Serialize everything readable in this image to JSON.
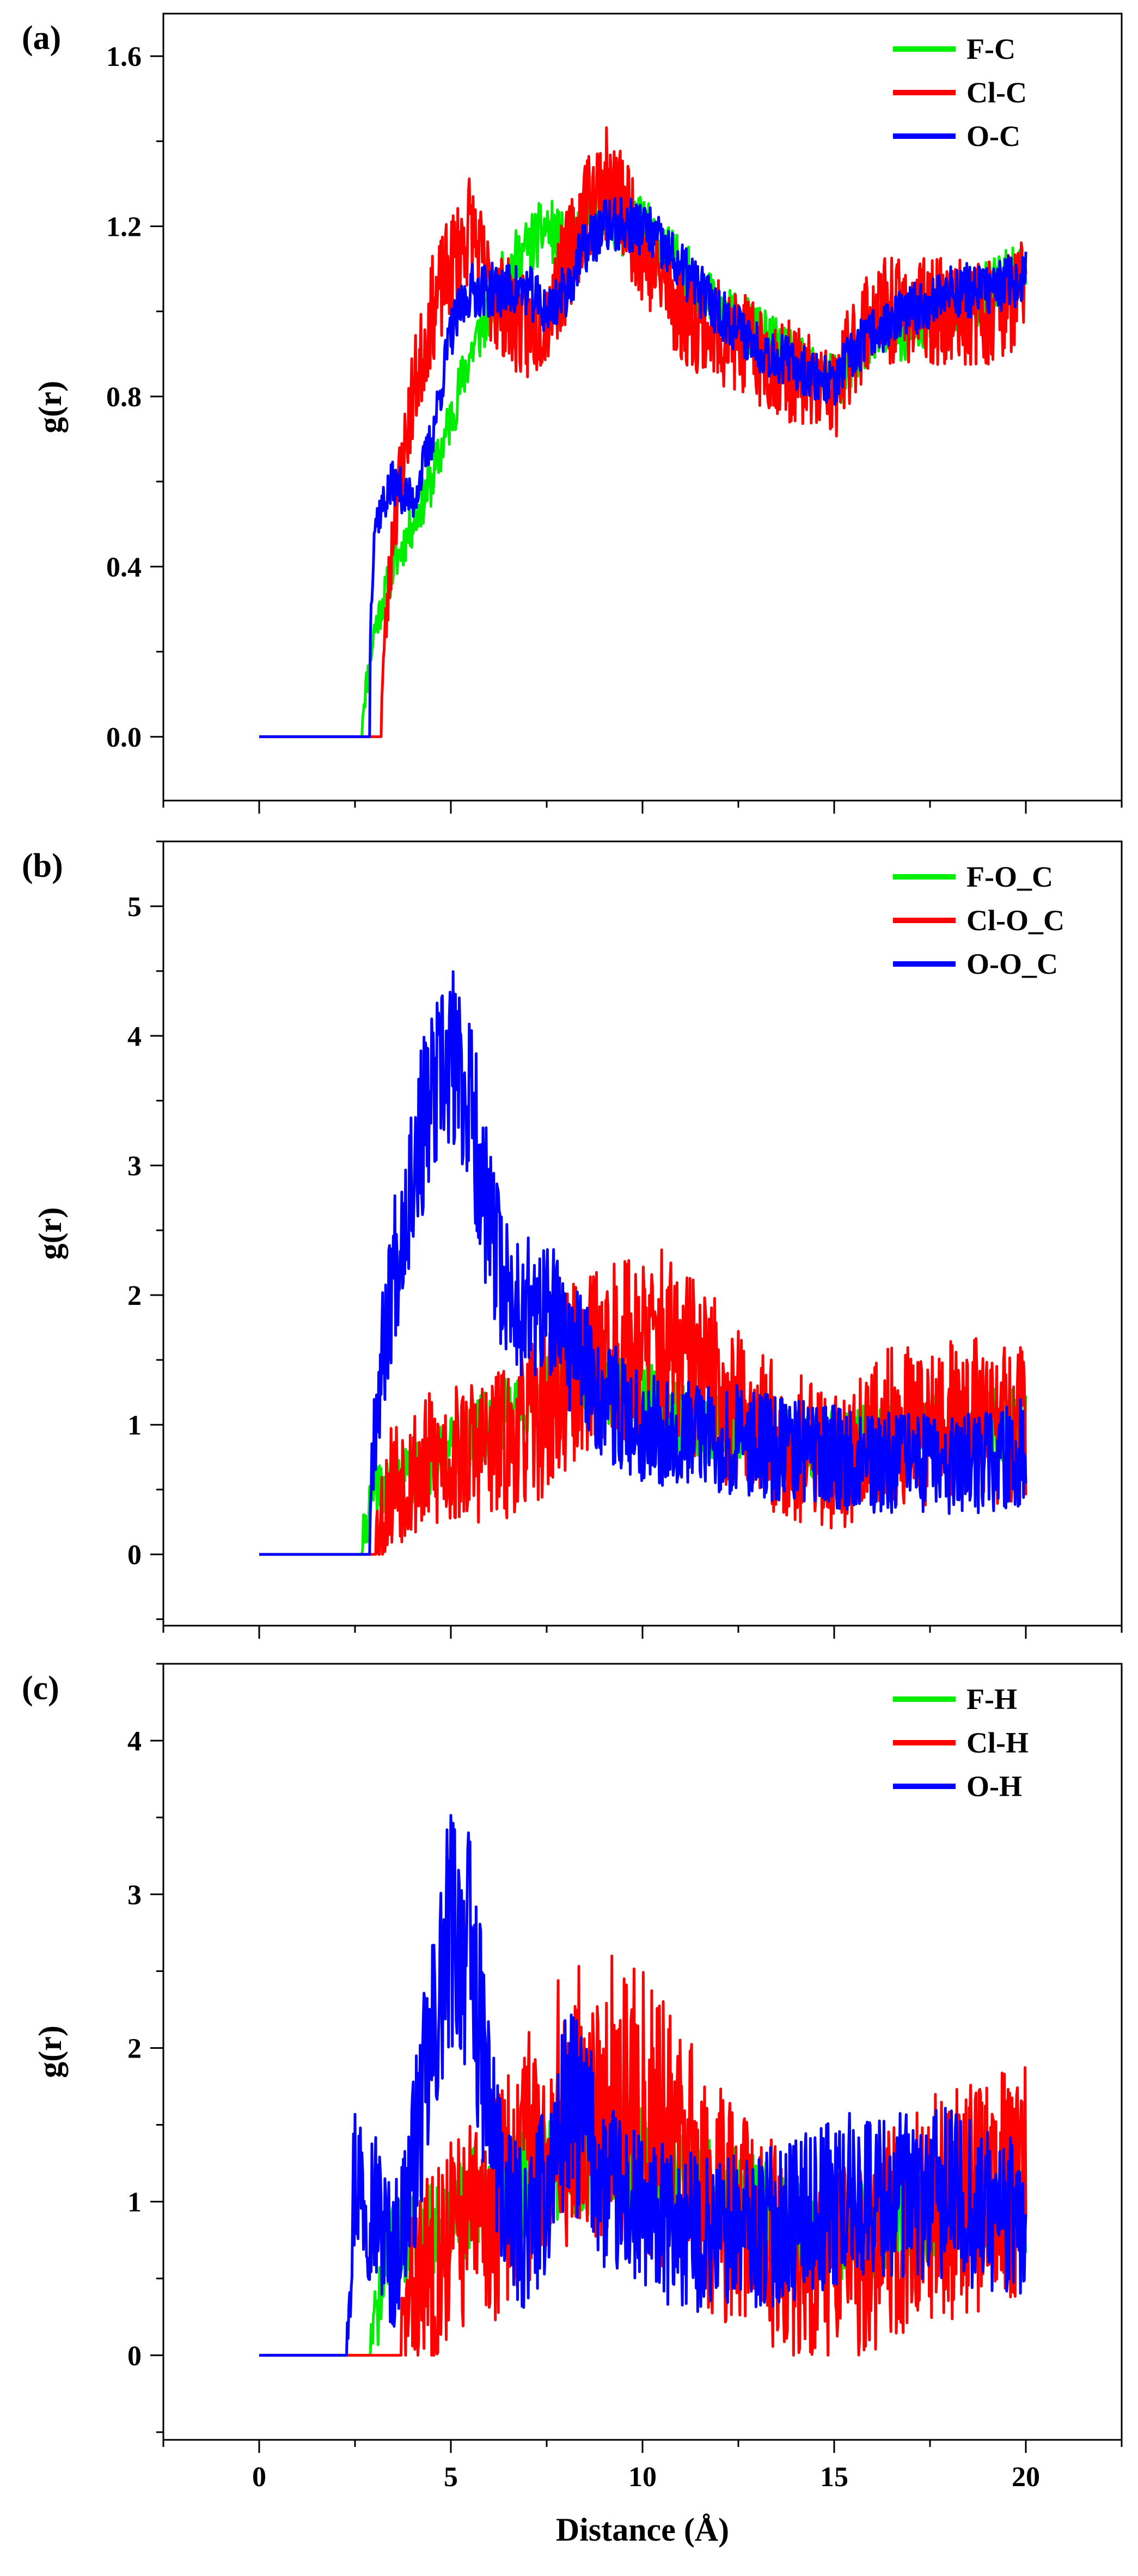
{
  "chart_data": [
    {
      "panel": "(a)",
      "type": "line",
      "xlabel": "",
      "ylabel": "g(r)",
      "xlim": [
        -2.5,
        22.5
      ],
      "ylim": [
        -0.15,
        1.7
      ],
      "xticks": [
        0,
        5,
        10,
        15,
        20
      ],
      "xticklabels": [],
      "yticks": [
        0.0,
        0.4,
        0.8,
        1.2,
        1.6
      ],
      "yticklabels": [
        "0.0",
        "0.4",
        "0.8",
        "1.2",
        "1.6"
      ],
      "legend_position": "top-right",
      "series": [
        {
          "name": "F-C",
          "color": "#00ee00",
          "onset": 2.7,
          "noise": 0.05,
          "seed": 11,
          "x": [
            0,
            2.6,
            3.0,
            3.5,
            4.0,
            4.5,
            5.0,
            5.5,
            6.0,
            6.5,
            7.0,
            7.5,
            8.0,
            8.5,
            9.0,
            9.5,
            10.0,
            11.0,
            12.0,
            13.0,
            14.0,
            14.5,
            15.0,
            15.5,
            16.0,
            17.0,
            18.0,
            19.0,
            20.0
          ],
          "y": [
            0,
            0,
            0.25,
            0.4,
            0.5,
            0.6,
            0.75,
            0.9,
            1.0,
            1.1,
            1.15,
            1.2,
            1.15,
            1.2,
            1.25,
            1.2,
            1.2,
            1.1,
            1.0,
            0.95,
            0.88,
            0.85,
            0.83,
            0.88,
            0.95,
            0.95,
            1.0,
            1.05,
            1.1
          ]
        },
        {
          "name": "Cl-C",
          "color": "#ff0000",
          "onset": 3.2,
          "noise": 0.09,
          "seed": 23,
          "x": [
            0,
            3.1,
            3.5,
            4.0,
            4.5,
            5.0,
            5.5,
            6.0,
            6.5,
            7.0,
            7.5,
            8.0,
            8.5,
            9.0,
            9.5,
            10.0,
            11.0,
            12.0,
            13.0,
            14.0,
            15.0,
            15.5,
            16.0,
            17.0,
            18.0,
            19.0,
            20.0
          ],
          "y": [
            0,
            0,
            0.5,
            0.8,
            1.0,
            1.1,
            1.2,
            1.05,
            1.0,
            0.95,
            1.0,
            1.1,
            1.25,
            1.3,
            1.25,
            1.15,
            1.0,
            0.95,
            0.9,
            0.85,
            0.8,
            0.92,
            1.0,
            1.0,
            1.0,
            1.0,
            1.05
          ]
        },
        {
          "name": "O-C",
          "color": "#0000ff",
          "onset": 2.9,
          "noise": 0.045,
          "seed": 37,
          "x": [
            0,
            2.8,
            3.0,
            3.5,
            4.0,
            4.5,
            5.0,
            5.5,
            6.0,
            6.5,
            7.0,
            7.5,
            8.0,
            8.5,
            9.0,
            9.5,
            10.0,
            11.0,
            12.0,
            13.0,
            14.0,
            14.5,
            15.0,
            15.5,
            16.0,
            17.0,
            18.0,
            19.0,
            20.0
          ],
          "y": [
            0,
            0,
            0.5,
            0.6,
            0.55,
            0.7,
            0.95,
            1.05,
            1.05,
            1.05,
            1.05,
            1.0,
            1.05,
            1.15,
            1.2,
            1.2,
            1.2,
            1.1,
            1.0,
            0.92,
            0.87,
            0.85,
            0.83,
            0.9,
            0.95,
            1.0,
            1.05,
            1.05,
            1.08
          ]
        }
      ]
    },
    {
      "panel": "(b)",
      "type": "line",
      "xlabel": "",
      "ylabel": "g(r)",
      "xlim": [
        -2.5,
        22.5
      ],
      "ylim": [
        -0.55,
        5.5
      ],
      "xticks": [
        0,
        5,
        10,
        15,
        20
      ],
      "xticklabels": [],
      "yticks": [
        0,
        1,
        2,
        3,
        4,
        5
      ],
      "yticklabels": [
        "0",
        "1",
        "2",
        "3",
        "4",
        "5"
      ],
      "legend_position": "top-right",
      "series": [
        {
          "name": "F-O_C",
          "color": "#00ee00",
          "onset": 2.7,
          "noise": 0.2,
          "seed": 41,
          "x": [
            0,
            2.6,
            3.0,
            4.0,
            5.0,
            6.0,
            7.0,
            8.0,
            9.0,
            10.0,
            11.0,
            12.0,
            13.0,
            14.0,
            15.0,
            16.0,
            17.0,
            18.0,
            19.0,
            20.0
          ],
          "y": [
            0,
            0,
            0.5,
            0.6,
            0.8,
            1.0,
            1.2,
            1.4,
            1.3,
            1.2,
            1.05,
            0.95,
            0.9,
            0.85,
            0.85,
            0.9,
            0.95,
            1.0,
            1.0,
            1.0
          ]
        },
        {
          "name": "Cl-O_C",
          "color": "#ff0000",
          "onset": 3.0,
          "noise": 0.45,
          "seed": 53,
          "x": [
            0,
            2.9,
            3.5,
            4.5,
            5.5,
            6.5,
            7.5,
            8.5,
            9.5,
            10.5,
            11.5,
            12.5,
            13.5,
            14.5,
            15.5,
            16.5,
            17.5,
            18.5,
            19.5,
            20.0
          ],
          "y": [
            0,
            0,
            0.6,
            0.7,
            0.8,
            0.85,
            1.1,
            1.5,
            1.6,
            1.6,
            1.4,
            1.1,
            0.9,
            0.75,
            0.75,
            1.0,
            1.0,
            1.05,
            1.0,
            1.05
          ]
        },
        {
          "name": "O-O_C",
          "color": "#0000ff",
          "onset": 2.9,
          "noise": 0.32,
          "seed": 67,
          "x": [
            0,
            2.8,
            3.0,
            3.5,
            4.0,
            4.5,
            5.0,
            5.5,
            6.0,
            6.5,
            7.0,
            7.5,
            8.0,
            9.0,
            10.0,
            11.0,
            12.0,
            13.0,
            14.0,
            15.0,
            16.0,
            17.0,
            18.0,
            19.0,
            20.0
          ],
          "y": [
            0,
            0,
            1.0,
            2.2,
            3.0,
            3.5,
            3.8,
            3.5,
            2.5,
            2.0,
            1.9,
            1.85,
            1.7,
            1.2,
            1.0,
            0.95,
            0.9,
            0.85,
            0.8,
            0.75,
            0.7,
            0.7,
            0.68,
            0.7,
            0.8
          ]
        }
      ]
    },
    {
      "panel": "(c)",
      "type": "line",
      "xlabel": "Distance (Å)",
      "ylabel": "g(r)",
      "xlim": [
        -2.5,
        22.5
      ],
      "ylim": [
        -0.55,
        4.5
      ],
      "xticks": [
        0,
        5,
        10,
        15,
        20
      ],
      "xticklabels": [
        "0",
        "5",
        "10",
        "15",
        "20"
      ],
      "yticks": [
        0,
        1,
        2,
        3,
        4
      ],
      "yticklabels": [
        "0",
        "1",
        "2",
        "3",
        "4"
      ],
      "legend_position": "top-right",
      "series": [
        {
          "name": "F-H",
          "color": "#00ee00",
          "onset": 2.9,
          "noise": 0.25,
          "seed": 71,
          "x": [
            0,
            2.8,
            3.5,
            4.5,
            5.5,
            6.5,
            7.5,
            8.5,
            9.5,
            10.5,
            11.5,
            12.5,
            13.5,
            14.5,
            15.5,
            16.5,
            17.5,
            18.5,
            19.5,
            20.0
          ],
          "y": [
            0,
            0,
            0.7,
            0.8,
            1.0,
            1.1,
            1.2,
            1.3,
            1.3,
            1.2,
            1.1,
            1.0,
            0.9,
            0.8,
            0.8,
            0.85,
            0.9,
            1.0,
            1.0,
            1.0
          ]
        },
        {
          "name": "Cl-H",
          "color": "#ff0000",
          "onset": 3.7,
          "noise": 0.55,
          "seed": 83,
          "x": [
            0,
            3.6,
            4.0,
            5.0,
            6.0,
            7.0,
            8.0,
            9.0,
            10.0,
            11.0,
            12.0,
            13.0,
            14.0,
            15.0,
            16.0,
            17.0,
            18.0,
            19.0,
            20.0
          ],
          "y": [
            0,
            0,
            0.4,
            0.8,
            0.9,
            1.3,
            1.6,
            1.7,
            1.6,
            1.3,
            1.0,
            0.8,
            0.6,
            0.55,
            0.7,
            0.85,
            1.0,
            1.05,
            1.1
          ]
        },
        {
          "name": "O-H",
          "color": "#0000ff",
          "onset": 2.3,
          "noise": 0.4,
          "seed": 97,
          "x": [
            0,
            2.2,
            2.5,
            3.0,
            3.5,
            4.0,
            4.5,
            5.0,
            5.5,
            6.0,
            6.5,
            7.0,
            7.5,
            8.0,
            8.5,
            9.0,
            10.0,
            11.0,
            12.0,
            13.0,
            14.0,
            15.0,
            16.0,
            17.0,
            18.0,
            19.0,
            20.0
          ],
          "y": [
            0,
            0,
            1.2,
            1.0,
            0.6,
            1.2,
            2.0,
            2.8,
            2.6,
            1.6,
            0.9,
            0.8,
            1.1,
            1.6,
            1.5,
            1.1,
            0.9,
            0.8,
            0.8,
            0.8,
            0.9,
            1.0,
            1.05,
            1.0,
            1.05,
            0.95,
            0.85
          ]
        }
      ]
    }
  ]
}
